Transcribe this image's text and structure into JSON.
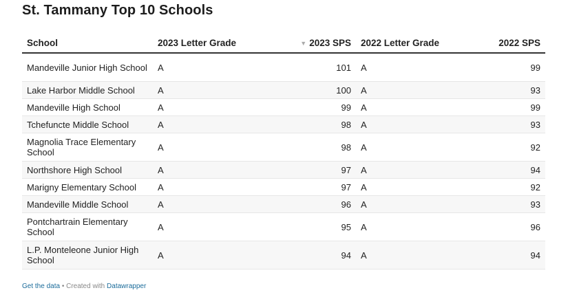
{
  "chart_data": {
    "type": "table",
    "title": "St. Tammany Top 10 Schools",
    "columns": [
      "School",
      "2023 Letter Grade",
      "2023 SPS",
      "2022 Letter Grade",
      "2022 SPS"
    ],
    "sorted_column": "2023 SPS",
    "rows": [
      {
        "school": "Mandeville Junior High School",
        "grade_2023": "A",
        "sps_2023": 101,
        "grade_2022": "A",
        "sps_2022": 99
      },
      {
        "school": "Lake Harbor Middle School",
        "grade_2023": "A",
        "sps_2023": 100,
        "grade_2022": "A",
        "sps_2022": 93
      },
      {
        "school": "Mandeville High School",
        "grade_2023": "A",
        "sps_2023": 99,
        "grade_2022": "A",
        "sps_2022": 99
      },
      {
        "school": "Tchefuncte Middle School",
        "grade_2023": "A",
        "sps_2023": 98,
        "grade_2022": "A",
        "sps_2022": 93
      },
      {
        "school": "Magnolia Trace Elementary School",
        "grade_2023": "A",
        "sps_2023": 98,
        "grade_2022": "A",
        "sps_2022": 92
      },
      {
        "school": "Northshore High School",
        "grade_2023": "A",
        "sps_2023": 97,
        "grade_2022": "A",
        "sps_2022": 94
      },
      {
        "school": "Marigny Elementary School",
        "grade_2023": "A",
        "sps_2023": 97,
        "grade_2022": "A",
        "sps_2022": 92
      },
      {
        "school": "Mandeville Middle School",
        "grade_2023": "A",
        "sps_2023": 96,
        "grade_2022": "A",
        "sps_2022": 93
      },
      {
        "school": "Pontchartrain Elementary School",
        "grade_2023": "A",
        "sps_2023": 95,
        "grade_2022": "A",
        "sps_2022": 96
      },
      {
        "school": "L.P. Monteleone Junior High School",
        "grade_2023": "A",
        "sps_2023": 94,
        "grade_2022": "A",
        "sps_2022": 94
      }
    ]
  },
  "footer": {
    "get_data": "Get the data",
    "separator": " • Created with ",
    "tool": "Datawrapper"
  },
  "icons": {
    "sort": "sort-descending-icon"
  }
}
